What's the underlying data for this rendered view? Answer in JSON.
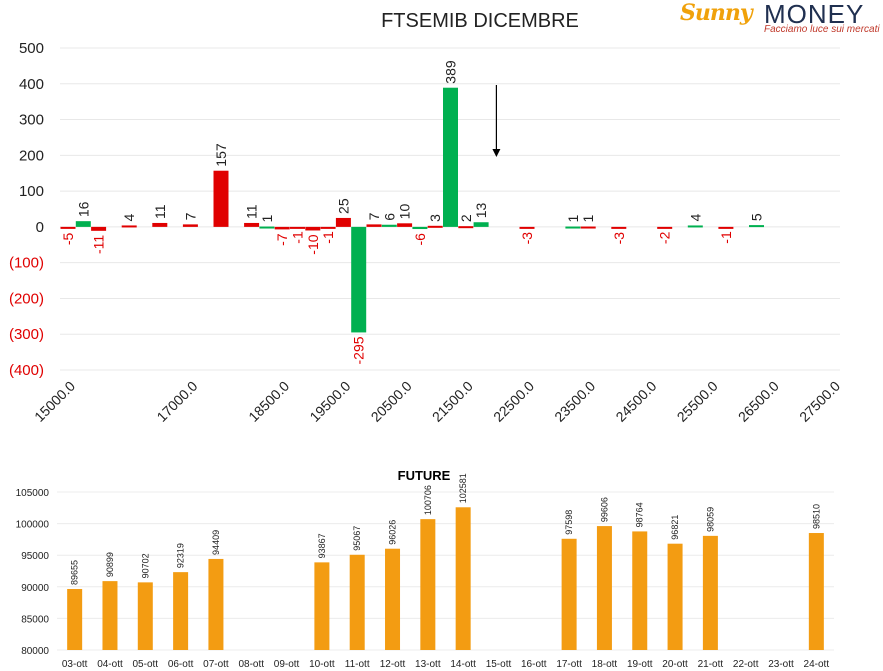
{
  "logo": {
    "brand_a": "Sunny",
    "brand_b": "MONEY",
    "tagline": "Facciamo luce sui mercati"
  },
  "chart_data": [
    {
      "type": "bar",
      "title": "FTSEMIB DICEMBRE",
      "ylim": [
        -400,
        500
      ],
      "yticks": [
        "500",
        "400",
        "300",
        "200",
        "100",
        "0",
        "(100)",
        "(200)",
        "(300)",
        "(400)"
      ],
      "x_tick_labels": [
        "15000.0",
        "17000.0",
        "18500.0",
        "19500.0",
        "20500.0",
        "21500.0",
        "22500.0",
        "23500.0",
        "24500.0",
        "25500.0",
        "26500.0",
        "27500.0"
      ],
      "grid": true,
      "annotation": "downward arrow above 22000",
      "bars": [
        {
          "x": 15000,
          "value": -5,
          "color": "#e00000"
        },
        {
          "x": 15250,
          "value": 16,
          "color": "#00b050"
        },
        {
          "x": 15500,
          "value": -11,
          "color": "#e00000"
        },
        {
          "x": 16000,
          "value": 4,
          "color": "#e00000"
        },
        {
          "x": 16500,
          "value": 11,
          "color": "#e00000"
        },
        {
          "x": 17000,
          "value": 7,
          "color": "#e00000"
        },
        {
          "x": 17500,
          "value": 157,
          "color": "#e00000"
        },
        {
          "x": 18000,
          "value": 11,
          "color": "#e00000"
        },
        {
          "x": 18250,
          "value": 1,
          "color": "#00b050"
        },
        {
          "x": 18500,
          "value": -7,
          "color": "#e00000"
        },
        {
          "x": 18750,
          "value": -1,
          "color": "#e00000"
        },
        {
          "x": 19000,
          "value": -10,
          "color": "#e00000"
        },
        {
          "x": 19250,
          "value": -1,
          "color": "#e00000"
        },
        {
          "x": 19500,
          "value": 25,
          "color": "#e00000"
        },
        {
          "x": 19750,
          "value": -295,
          "color": "#00b050"
        },
        {
          "x": 20000,
          "value": 7,
          "color": "#e00000"
        },
        {
          "x": 20250,
          "value": 6,
          "color": "#00b050"
        },
        {
          "x": 20500,
          "value": 10,
          "color": "#e00000"
        },
        {
          "x": 20750,
          "value": -6,
          "color": "#00b050"
        },
        {
          "x": 21000,
          "value": 3,
          "color": "#e00000"
        },
        {
          "x": 21250,
          "value": 389,
          "color": "#00b050"
        },
        {
          "x": 21500,
          "value": 2,
          "color": "#e00000"
        },
        {
          "x": 21750,
          "value": 13,
          "color": "#00b050"
        },
        {
          "x": 22500,
          "value": -3,
          "color": "#e00000"
        },
        {
          "x": 23250,
          "value": 1,
          "color": "#00b050"
        },
        {
          "x": 23500,
          "value": 1,
          "color": "#e00000"
        },
        {
          "x": 24000,
          "value": -3,
          "color": "#e00000"
        },
        {
          "x": 24750,
          "value": -2,
          "color": "#e00000"
        },
        {
          "x": 25250,
          "value": 4,
          "color": "#00b050"
        },
        {
          "x": 25750,
          "value": -1,
          "color": "#e00000"
        },
        {
          "x": 26250,
          "value": 5,
          "color": "#00b050"
        }
      ]
    },
    {
      "type": "bar",
      "title": "FUTURE",
      "ylim": [
        80000,
        105000
      ],
      "yticks": [
        "105000",
        "100000",
        "95000",
        "90000",
        "85000",
        "80000"
      ],
      "grid": true,
      "color": "#f39c12",
      "categories": [
        "03-ott",
        "04-ott",
        "05-ott",
        "06-ott",
        "07-ott",
        "08-ott",
        "09-ott",
        "10-ott",
        "11-ott",
        "12-ott",
        "13-ott",
        "14-ott",
        "15-ott",
        "16-ott",
        "17-ott",
        "18-ott",
        "19-ott",
        "20-ott",
        "21-ott",
        "22-ott",
        "23-ott",
        "24-ott"
      ],
      "values": [
        89655,
        90899,
        90702,
        92319,
        94409,
        null,
        null,
        93867,
        95067,
        96026,
        100706,
        102581,
        null,
        null,
        97598,
        99606,
        98764,
        96821,
        98059,
        null,
        null,
        98510
      ],
      "labels": [
        "89655",
        "90899",
        "90702",
        "92319",
        "94409",
        "",
        "",
        "93867",
        "95067",
        "96026",
        "100706",
        "102581",
        "",
        "",
        "97598",
        "99606",
        "98764",
        "96821",
        "98059",
        "",
        "",
        "98510"
      ]
    }
  ]
}
